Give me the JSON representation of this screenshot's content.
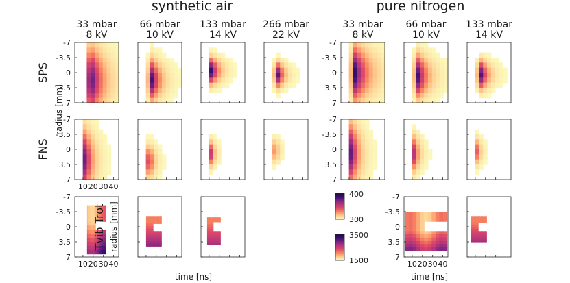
{
  "chart_data": {
    "type": "heatmap",
    "group_titles": [
      "synthetic air",
      "pure nitrogen"
    ],
    "groups": [
      {
        "title": "synthetic air",
        "conditions": [
          {
            "pressure": "33 mbar",
            "voltage": "8 kV"
          },
          {
            "pressure": "66 mbar",
            "voltage": "10 kV"
          },
          {
            "pressure": "133 mbar",
            "voltage": "14 kV"
          },
          {
            "pressure": "266 mbar",
            "voltage": "22 kV"
          }
        ]
      },
      {
        "title": "pure nitrogen",
        "conditions": [
          {
            "pressure": "33 mbar",
            "voltage": "8 kV"
          },
          {
            "pressure": "66 mbar",
            "voltage": "10 kV"
          },
          {
            "pressure": "133 mbar",
            "voltage": "14 kV"
          }
        ]
      }
    ],
    "rows": [
      "SPS",
      "FNS",
      "Tvib  Trot"
    ],
    "ylabel": "radius [mm]",
    "xlabel": "time [ns]",
    "y_tick_labels": [
      "-7",
      "-3.5",
      "0",
      "3.5",
      "7"
    ],
    "y_ticks": [
      -7,
      -3.5,
      0,
      3.5,
      7
    ],
    "x_tick_labels": [
      "10",
      "20",
      "30",
      "40"
    ],
    "x_ticks": [
      10,
      20,
      30,
      40
    ],
    "xlim": [
      2,
      45
    ],
    "ylim": [
      -7,
      7
    ],
    "colorbars": [
      {
        "name": "Trot",
        "min": 300,
        "max": 400,
        "min_label": "300",
        "max_label": "400"
      },
      {
        "name": "Tvib",
        "min": 1500,
        "max": 3500,
        "min_label": "1500",
        "max_label": "3500"
      }
    ],
    "colormap": [
      "#fcfdbf",
      "#fec98d",
      "#f9855f",
      "#de4968",
      "#b5367a",
      "#7e2482",
      "#3b0f70",
      "#1c0b45"
    ],
    "panels": [
      {
        "row": 0,
        "col": 0,
        "peak_time": 17,
        "peak_radius": 1.8,
        "intensity": 0.95,
        "radial_width": 6.5,
        "decay": 10
      },
      {
        "row": 0,
        "col": 1,
        "peak_time": 15,
        "peak_radius": 1.7,
        "intensity": 0.92,
        "radial_width": 4.0,
        "decay": 7
      },
      {
        "row": 0,
        "col": 2,
        "peak_time": 12,
        "peak_radius": -0.4,
        "intensity": 0.92,
        "radial_width": 2.6,
        "decay": 6
      },
      {
        "row": 0,
        "col": 3,
        "peak_time": 15,
        "peak_radius": 0.5,
        "intensity": 0.9,
        "radial_width": 2.4,
        "decay": 5
      },
      {
        "row": 0,
        "col": 4,
        "peak_time": 15,
        "peak_radius": 0.2,
        "intensity": 0.95,
        "radial_width": 5.5,
        "decay": 11
      },
      {
        "row": 0,
        "col": 5,
        "peak_time": 15,
        "peak_radius": 0.8,
        "intensity": 0.92,
        "radial_width": 4.2,
        "decay": 8
      },
      {
        "row": 0,
        "col": 6,
        "peak_time": 15,
        "peak_radius": 0.5,
        "intensity": 0.9,
        "radial_width": 2.8,
        "decay": 6
      },
      {
        "row": 1,
        "col": 0,
        "peak_time": 12,
        "peak_radius": 2.5,
        "intensity": 0.8,
        "radial_width": 6.0,
        "decay": 6
      },
      {
        "row": 1,
        "col": 1,
        "peak_time": 13,
        "peak_radius": 2.8,
        "intensity": 0.6,
        "radial_width": 3.2,
        "decay": 4
      },
      {
        "row": 1,
        "col": 2,
        "peak_time": 12,
        "peak_radius": 1.0,
        "intensity": 0.55,
        "radial_width": 2.5,
        "decay": 3
      },
      {
        "row": 1,
        "col": 3,
        "peak_time": 13,
        "peak_radius": 0.3,
        "intensity": 0.35,
        "radial_width": 2.4,
        "decay": 3
      },
      {
        "row": 1,
        "col": 4,
        "peak_time": 12,
        "peak_radius": 1.0,
        "intensity": 0.82,
        "radial_width": 6.0,
        "decay": 6
      },
      {
        "row": 1,
        "col": 5,
        "peak_time": 12,
        "peak_radius": 1.0,
        "intensity": 0.6,
        "radial_width": 3.5,
        "decay": 4
      },
      {
        "row": 1,
        "col": 6,
        "peak_time": 12,
        "peak_radius": 0.5,
        "intensity": 0.4,
        "radial_width": 2.6,
        "decay": 3
      }
    ]
  }
}
